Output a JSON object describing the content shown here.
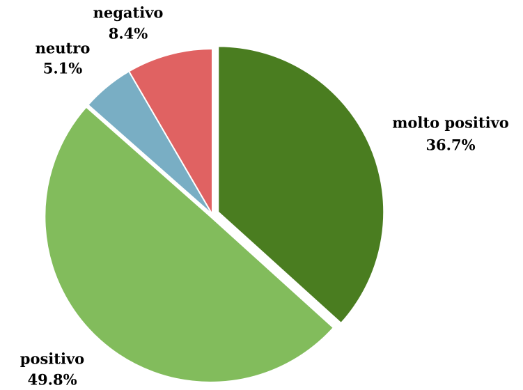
{
  "chart_data": {
    "type": "pie",
    "categories": [
      "molto positivo",
      "positivo",
      "neutro",
      "negativo"
    ],
    "values": [
      36.7,
      49.8,
      5.1,
      8.4
    ],
    "value_labels": [
      "36.7%",
      "49.8%",
      "5.1%",
      "8.4%"
    ],
    "colors": [
      "#4a7d20",
      "#82bc5c",
      "#79aec4",
      "#e06262"
    ]
  }
}
